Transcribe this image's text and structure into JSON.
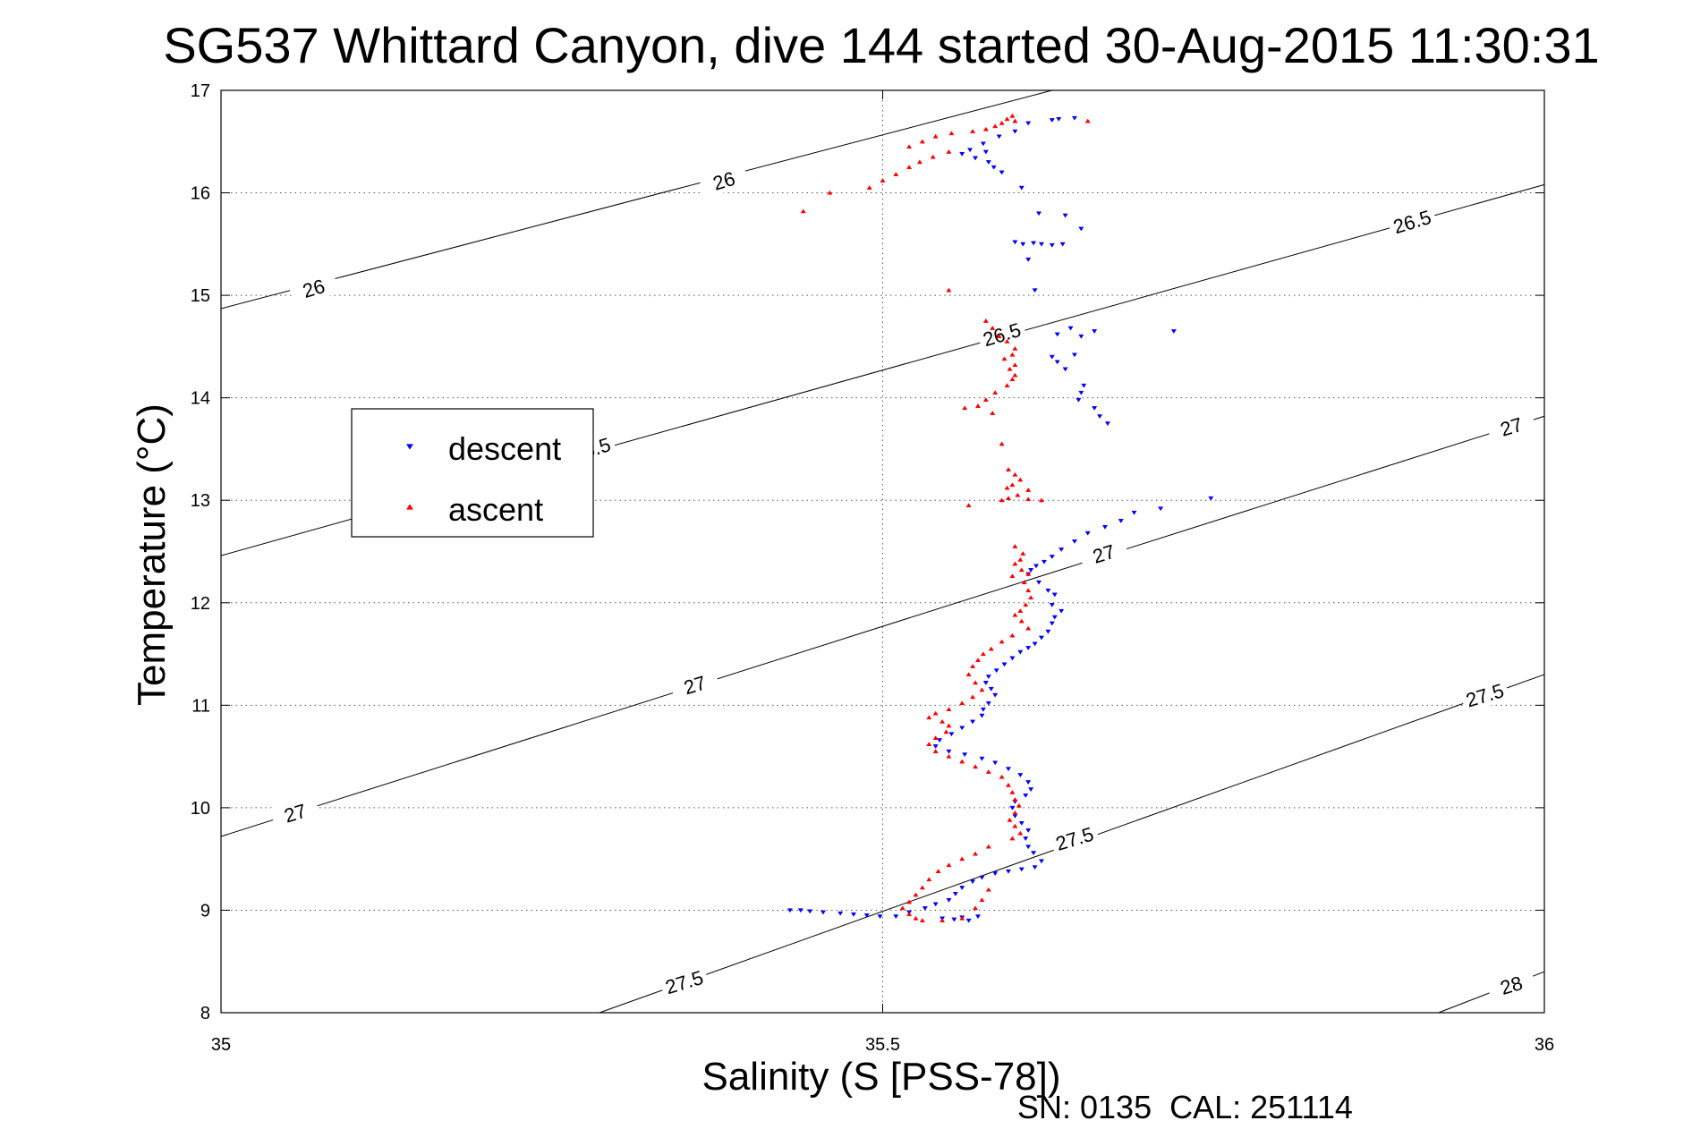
{
  "chart_data": {
    "type": "scatter",
    "title": "SG537 Whittard Canyon, dive 144 started 30-Aug-2015 11:30:31",
    "xlabel": "Salinity (S [PSS-78])",
    "ylabel": "Temperature (°C)",
    "xlim": [
      35,
      36
    ],
    "ylim": [
      8,
      17
    ],
    "x_ticks": [
      35,
      35.5,
      36
    ],
    "x_tick_labels": [
      "35",
      "35.5",
      "36"
    ],
    "y_ticks": [
      8,
      9,
      10,
      11,
      12,
      13,
      14,
      15,
      16,
      17
    ],
    "y_tick_labels": [
      "8",
      "9",
      "10",
      "11",
      "12",
      "13",
      "14",
      "15",
      "16",
      "17"
    ],
    "grid": true,
    "legend_position": "upper-left",
    "footer": "SN: 0135  CAL: 251114",
    "contours": [
      {
        "label": "26",
        "points": [
          [
            35,
            14.87
          ],
          [
            35.628,
            17
          ]
        ],
        "labels": [
          {
            "text": "26",
            "x": 35.07,
            "y": 15.07,
            "angle": -17
          },
          {
            "text": "26",
            "x": 35.38,
            "y": 16.12,
            "angle": -17
          }
        ]
      },
      {
        "label": "26.5",
        "points": [
          [
            35,
            12.46
          ],
          [
            36,
            16.08
          ]
        ],
        "labels": [
          {
            "text": "26.5",
            "x": 35.28,
            "y": 13.5,
            "angle": -17
          },
          {
            "text": "26.5",
            "x": 35.59,
            "y": 14.62,
            "angle": -17
          },
          {
            "text": "26.5",
            "x": 35.9,
            "y": 15.72,
            "angle": -17
          }
        ]
      },
      {
        "label": "27",
        "points": [
          [
            35,
            9.72
          ],
          [
            36,
            13.82
          ]
        ],
        "labels": [
          {
            "text": "27",
            "x": 35.056,
            "y": 9.95,
            "angle": -17
          },
          {
            "text": "27",
            "x": 35.358,
            "y": 11.2,
            "angle": -17
          },
          {
            "text": "27",
            "x": 35.667,
            "y": 12.48,
            "angle": -17
          },
          {
            "text": "27",
            "x": 35.975,
            "y": 13.72,
            "angle": -17
          }
        ]
      },
      {
        "label": "27.5",
        "points": [
          [
            35.286,
            8
          ],
          [
            36,
            11.3
          ]
        ],
        "labels": [
          {
            "text": "27.5",
            "x": 35.35,
            "y": 8.3,
            "angle": -17
          },
          {
            "text": "27.5",
            "x": 35.645,
            "y": 9.7,
            "angle": -17
          },
          {
            "text": "27.5",
            "x": 35.955,
            "y": 11.1,
            "angle": -17
          }
        ]
      },
      {
        "label": "28",
        "points": [
          [
            35.92,
            8
          ],
          [
            36,
            8.4
          ]
        ],
        "labels": [
          {
            "text": "28",
            "x": 35.975,
            "y": 8.27,
            "angle": -17
          }
        ]
      }
    ],
    "series": [
      {
        "name": "descent",
        "color": "#0000ff",
        "marker": "triangle-down",
        "points": [
          [
            35.633,
            16.72
          ],
          [
            35.645,
            16.73
          ],
          [
            35.628,
            16.71
          ],
          [
            35.61,
            16.68
          ],
          [
            35.6,
            16.6
          ],
          [
            35.588,
            16.55
          ],
          [
            35.576,
            16.48
          ],
          [
            35.566,
            16.42
          ],
          [
            35.56,
            16.38
          ],
          [
            35.57,
            16.34
          ],
          [
            35.578,
            16.4
          ],
          [
            35.58,
            16.3
          ],
          [
            35.584,
            16.25
          ],
          [
            35.59,
            16.2
          ],
          [
            35.605,
            16.05
          ],
          [
            35.618,
            15.8
          ],
          [
            35.638,
            15.78
          ],
          [
            35.65,
            15.65
          ],
          [
            35.6,
            15.52
          ],
          [
            35.606,
            15.5
          ],
          [
            35.614,
            15.51
          ],
          [
            35.62,
            15.5
          ],
          [
            35.628,
            15.49
          ],
          [
            35.636,
            15.5
          ],
          [
            35.61,
            15.35
          ],
          [
            35.615,
            15.05
          ],
          [
            35.632,
            14.62
          ],
          [
            35.642,
            14.68
          ],
          [
            35.65,
            14.6
          ],
          [
            35.66,
            14.65
          ],
          [
            35.72,
            14.65
          ],
          [
            35.628,
            14.4
          ],
          [
            35.632,
            14.35
          ],
          [
            35.638,
            14.28
          ],
          [
            35.645,
            14.42
          ],
          [
            35.652,
            14.12
          ],
          [
            35.65,
            14.05
          ],
          [
            35.648,
            13.98
          ],
          [
            35.66,
            13.9
          ],
          [
            35.664,
            13.82
          ],
          [
            35.67,
            13.75
          ],
          [
            35.748,
            13.02
          ],
          [
            35.71,
            12.92
          ],
          [
            35.69,
            12.88
          ],
          [
            35.68,
            12.8
          ],
          [
            35.668,
            12.74
          ],
          [
            35.655,
            12.68
          ],
          [
            35.645,
            12.6
          ],
          [
            35.635,
            12.52
          ],
          [
            35.628,
            12.45
          ],
          [
            35.622,
            12.4
          ],
          [
            35.616,
            12.36
          ],
          [
            35.612,
            12.32
          ],
          [
            35.61,
            12.28
          ],
          [
            35.618,
            12.2
          ],
          [
            35.625,
            12.12
          ],
          [
            35.63,
            12.08
          ],
          [
            35.628,
            11.98
          ],
          [
            35.635,
            11.92
          ],
          [
            35.63,
            11.86
          ],
          [
            35.628,
            11.8
          ],
          [
            35.625,
            11.72
          ],
          [
            35.62,
            11.66
          ],
          [
            35.615,
            11.6
          ],
          [
            35.61,
            11.56
          ],
          [
            35.604,
            11.52
          ],
          [
            35.598,
            11.46
          ],
          [
            35.592,
            11.4
          ],
          [
            35.586,
            11.34
          ],
          [
            35.58,
            11.28
          ],
          [
            35.578,
            11.22
          ],
          [
            35.582,
            11.16
          ],
          [
            35.585,
            11.1
          ],
          [
            35.58,
            11.02
          ],
          [
            35.576,
            10.96
          ],
          [
            35.575,
            10.9
          ],
          [
            35.568,
            10.84
          ],
          [
            35.56,
            10.78
          ],
          [
            35.552,
            10.72
          ],
          [
            35.543,
            10.66
          ],
          [
            35.54,
            10.6
          ],
          [
            35.55,
            10.55
          ],
          [
            35.562,
            10.52
          ],
          [
            35.575,
            10.48
          ],
          [
            35.585,
            10.44
          ],
          [
            35.595,
            10.38
          ],
          [
            35.604,
            10.32
          ],
          [
            35.61,
            10.25
          ],
          [
            35.612,
            10.18
          ],
          [
            35.608,
            10.12
          ],
          [
            35.6,
            10.06
          ],
          [
            35.598,
            10.0
          ],
          [
            35.6,
            9.92
          ],
          [
            35.605,
            9.85
          ],
          [
            35.61,
            9.78
          ],
          [
            35.608,
            9.7
          ],
          [
            35.61,
            9.62
          ],
          [
            35.614,
            9.56
          ],
          [
            35.62,
            9.48
          ],
          [
            35.615,
            9.42
          ],
          [
            35.605,
            9.4
          ],
          [
            35.595,
            9.38
          ],
          [
            35.585,
            9.36
          ],
          [
            35.575,
            9.32
          ],
          [
            35.568,
            9.28
          ],
          [
            35.56,
            9.22
          ],
          [
            35.555,
            9.16
          ],
          [
            35.55,
            9.1
          ],
          [
            35.54,
            9.06
          ],
          [
            35.532,
            9.02
          ],
          [
            35.52,
            8.98
          ],
          [
            35.51,
            8.94
          ],
          [
            35.498,
            8.94
          ],
          [
            35.488,
            8.95
          ],
          [
            35.478,
            8.96
          ],
          [
            35.468,
            8.97
          ],
          [
            35.455,
            8.98
          ],
          [
            35.445,
            8.99
          ],
          [
            35.438,
            9.0
          ],
          [
            35.43,
            9.0
          ],
          [
            35.545,
            8.92
          ],
          [
            35.56,
            8.93
          ],
          [
            35.572,
            8.94
          ],
          [
            35.565,
            8.9
          ],
          [
            35.554,
            8.91
          ]
        ]
      },
      {
        "name": "ascent",
        "color": "#ff0000",
        "marker": "triangle-up",
        "points": [
          [
            35.598,
            16.75
          ],
          [
            35.594,
            16.72
          ],
          [
            35.6,
            16.7
          ],
          [
            35.59,
            16.68
          ],
          [
            35.585,
            16.65
          ],
          [
            35.578,
            16.62
          ],
          [
            35.655,
            16.7
          ],
          [
            35.568,
            16.6
          ],
          [
            35.552,
            16.58
          ],
          [
            35.54,
            16.55
          ],
          [
            35.53,
            16.5
          ],
          [
            35.52,
            16.45
          ],
          [
            35.55,
            16.4
          ],
          [
            35.538,
            16.35
          ],
          [
            35.528,
            16.3
          ],
          [
            35.52,
            16.25
          ],
          [
            35.51,
            16.18
          ],
          [
            35.5,
            16.12
          ],
          [
            35.49,
            16.05
          ],
          [
            35.46,
            16.0
          ],
          [
            35.44,
            15.82
          ],
          [
            35.55,
            15.05
          ],
          [
            35.578,
            14.75
          ],
          [
            35.583,
            14.68
          ],
          [
            35.588,
            14.6
          ],
          [
            35.594,
            14.55
          ],
          [
            35.6,
            14.48
          ],
          [
            35.598,
            14.42
          ],
          [
            35.592,
            14.38
          ],
          [
            35.6,
            14.32
          ],
          [
            35.596,
            14.28
          ],
          [
            35.6,
            14.22
          ],
          [
            35.598,
            14.18
          ],
          [
            35.594,
            14.12
          ],
          [
            35.585,
            14.05
          ],
          [
            35.578,
            13.98
          ],
          [
            35.572,
            13.92
          ],
          [
            35.562,
            13.9
          ],
          [
            35.583,
            13.85
          ],
          [
            35.59,
            13.55
          ],
          [
            35.595,
            13.3
          ],
          [
            35.6,
            13.25
          ],
          [
            35.604,
            13.2
          ],
          [
            35.598,
            13.15
          ],
          [
            35.594,
            13.12
          ],
          [
            35.61,
            13.1
          ],
          [
            35.602,
            13.05
          ],
          [
            35.595,
            13.02
          ],
          [
            35.61,
            13.01
          ],
          [
            35.62,
            13.0
          ],
          [
            35.59,
            13.0
          ],
          [
            35.565,
            12.95
          ],
          [
            35.6,
            12.55
          ],
          [
            35.606,
            12.48
          ],
          [
            35.604,
            12.42
          ],
          [
            35.6,
            12.38
          ],
          [
            35.605,
            12.32
          ],
          [
            35.61,
            12.28
          ],
          [
            35.598,
            12.26
          ],
          [
            35.607,
            12.2
          ],
          [
            35.61,
            12.12
          ],
          [
            35.612,
            12.05
          ],
          [
            35.608,
            11.98
          ],
          [
            35.604,
            11.92
          ],
          [
            35.6,
            11.88
          ],
          [
            35.605,
            11.82
          ],
          [
            35.61,
            11.75
          ],
          [
            35.598,
            11.68
          ],
          [
            35.59,
            11.62
          ],
          [
            35.582,
            11.55
          ],
          [
            35.576,
            11.5
          ],
          [
            35.572,
            11.44
          ],
          [
            35.568,
            11.38
          ],
          [
            35.565,
            11.3
          ],
          [
            35.57,
            11.22
          ],
          [
            35.575,
            11.15
          ],
          [
            35.568,
            11.08
          ],
          [
            35.56,
            11.02
          ],
          [
            35.55,
            10.96
          ],
          [
            35.54,
            10.92
          ],
          [
            35.535,
            10.88
          ],
          [
            35.545,
            10.84
          ],
          [
            35.55,
            10.8
          ],
          [
            35.548,
            10.74
          ],
          [
            35.54,
            10.68
          ],
          [
            35.535,
            10.62
          ],
          [
            35.54,
            10.55
          ],
          [
            35.55,
            10.5
          ],
          [
            35.56,
            10.45
          ],
          [
            35.57,
            10.4
          ],
          [
            35.58,
            10.35
          ],
          [
            35.59,
            10.3
          ],
          [
            35.595,
            10.22
          ],
          [
            35.598,
            10.15
          ],
          [
            35.6,
            10.08
          ],
          [
            35.603,
            10.02
          ],
          [
            35.6,
            9.95
          ],
          [
            35.596,
            9.88
          ],
          [
            35.6,
            9.82
          ],
          [
            35.604,
            9.75
          ],
          [
            35.598,
            9.7
          ],
          [
            35.58,
            9.62
          ],
          [
            35.57,
            9.55
          ],
          [
            35.56,
            9.5
          ],
          [
            35.55,
            9.44
          ],
          [
            35.542,
            9.38
          ],
          [
            35.535,
            9.3
          ],
          [
            35.53,
            9.22
          ],
          [
            35.525,
            9.15
          ],
          [
            35.52,
            9.08
          ],
          [
            35.515,
            9.02
          ],
          [
            35.52,
            8.96
          ],
          [
            35.525,
            8.92
          ],
          [
            35.53,
            8.9
          ],
          [
            35.545,
            8.9
          ],
          [
            35.56,
            8.92
          ],
          [
            35.57,
            9.02
          ],
          [
            35.575,
            9.1
          ],
          [
            35.58,
            9.2
          ]
        ]
      }
    ]
  }
}
